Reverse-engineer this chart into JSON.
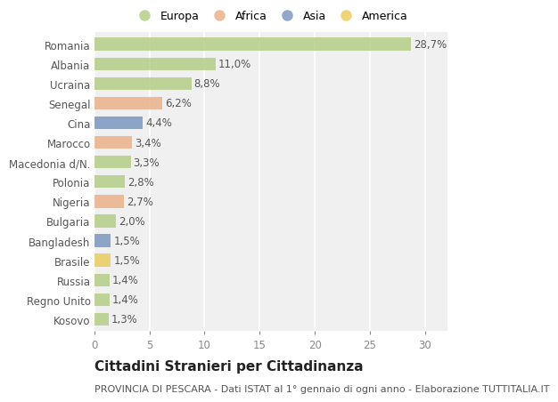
{
  "categories": [
    "Romania",
    "Albania",
    "Ucraina",
    "Senegal",
    "Cina",
    "Marocco",
    "Macedonia d/N.",
    "Polonia",
    "Nigeria",
    "Bulgaria",
    "Bangladesh",
    "Brasile",
    "Russia",
    "Regno Unito",
    "Kosovo"
  ],
  "values": [
    28.7,
    11.0,
    8.8,
    6.2,
    4.4,
    3.4,
    3.3,
    2.8,
    2.7,
    2.0,
    1.5,
    1.5,
    1.4,
    1.4,
    1.3
  ],
  "labels": [
    "28,7%",
    "11,0%",
    "8,8%",
    "6,2%",
    "4,4%",
    "3,4%",
    "3,3%",
    "2,8%",
    "2,7%",
    "2,0%",
    "1,5%",
    "1,5%",
    "1,4%",
    "1,4%",
    "1,3%"
  ],
  "colors": [
    "#adc878",
    "#adc878",
    "#adc878",
    "#e8a87c",
    "#6b8cba",
    "#e8a87c",
    "#adc878",
    "#adc878",
    "#e8a87c",
    "#adc878",
    "#6b8cba",
    "#e8c84a",
    "#adc878",
    "#adc878",
    "#adc878"
  ],
  "legend_labels": [
    "Europa",
    "Africa",
    "Asia",
    "America"
  ],
  "legend_colors": [
    "#adc878",
    "#e8a87c",
    "#6b8cba",
    "#e8c84a"
  ],
  "title": "Cittadini Stranieri per Cittadinanza",
  "subtitle": "PROVINCIA DI PESCARA - Dati ISTAT al 1° gennaio di ogni anno - Elaborazione TUTTITALIA.IT",
  "xlim": [
    0,
    32
  ],
  "xticks": [
    0,
    5,
    10,
    15,
    20,
    25,
    30
  ],
  "bg_color": "#ffffff",
  "plot_bg_color": "#f0f0f0",
  "bar_height": 0.65,
  "grid_color": "#ffffff",
  "title_fontsize": 11,
  "subtitle_fontsize": 8,
  "label_fontsize": 8.5,
  "tick_fontsize": 8.5,
  "legend_fontsize": 9
}
